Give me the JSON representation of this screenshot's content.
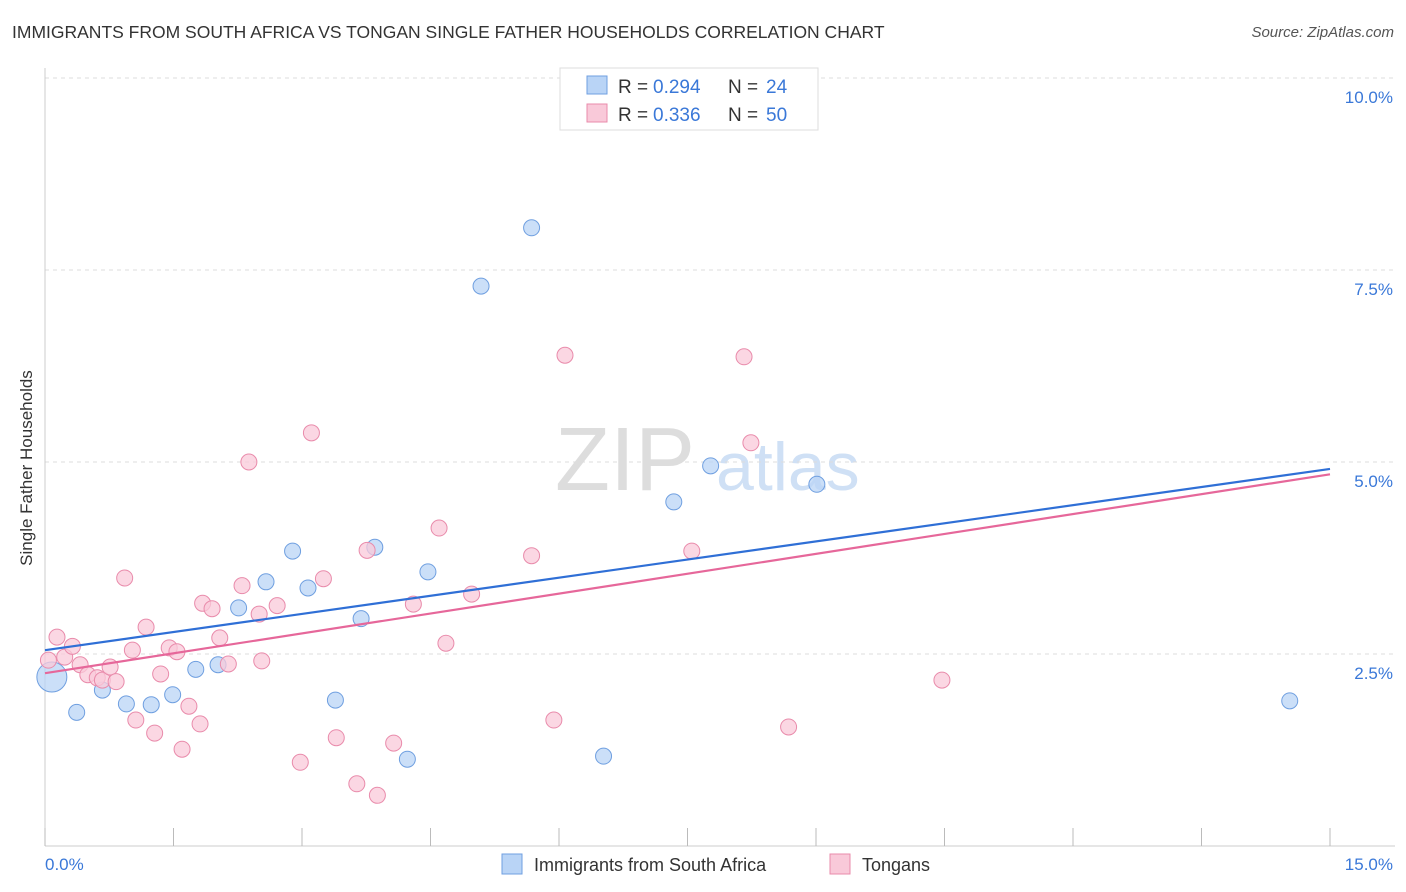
{
  "title": "IMMIGRANTS FROM SOUTH AFRICA VS TONGAN SINGLE FATHER HOUSEHOLDS CORRELATION CHART",
  "source": "Source: ZipAtlas.com",
  "watermark": {
    "zip": "ZIP",
    "atlas": "atlas"
  },
  "chart_data": {
    "type": "scatter",
    "title": "IMMIGRANTS FROM SOUTH AFRICA VS TONGAN SINGLE FATHER HOUSEHOLDS CORRELATION CHART",
    "xlabel": "",
    "ylabel": "Single Father Households",
    "xlim": [
      0,
      15
    ],
    "ylim": [
      0,
      10
    ],
    "x_tick_labels": [
      "0.0%",
      "15.0%"
    ],
    "y_ticks": [
      2.5,
      5.0,
      7.5,
      10.0
    ],
    "y_tick_labels": [
      "2.5%",
      "5.0%",
      "7.5%",
      "10.0%"
    ],
    "legend_placement": "top-center",
    "colors": {
      "blue_fill": "#b9d4f6",
      "blue_stroke": "#6f9fe0",
      "blue_line": "#2f6fd6",
      "pink_fill": "#f9c9d9",
      "pink_stroke": "#e98bab",
      "pink_line": "#e6679a",
      "value_text": "#3a78d8"
    },
    "series": [
      {
        "name": "Immigrants from South Africa",
        "R": "0.294",
        "N": "24",
        "trend": [
          [
            0,
            2.55
          ],
          [
            15,
            4.91
          ]
        ],
        "points": [
          [
            0.08,
            2.2
          ],
          [
            0.37,
            1.74
          ],
          [
            0.67,
            2.03
          ],
          [
            0.95,
            1.85
          ],
          [
            1.24,
            1.84
          ],
          [
            1.49,
            1.97
          ],
          [
            1.76,
            2.3
          ],
          [
            2.02,
            2.36
          ],
          [
            2.26,
            3.1
          ],
          [
            2.58,
            3.44
          ],
          [
            2.89,
            3.84
          ],
          [
            3.07,
            3.36
          ],
          [
            3.39,
            1.9
          ],
          [
            3.69,
            2.96
          ],
          [
            3.85,
            3.89
          ],
          [
            4.23,
            1.13
          ],
          [
            4.47,
            3.57
          ],
          [
            5.09,
            7.29
          ],
          [
            5.68,
            8.05
          ],
          [
            6.52,
            1.17
          ],
          [
            7.34,
            4.48
          ],
          [
            7.77,
            4.95
          ],
          [
            9.01,
            4.71
          ],
          [
            14.53,
            1.89
          ]
        ]
      },
      {
        "name": "Tongans",
        "R": "0.336",
        "N": "50",
        "trend": [
          [
            0,
            2.25
          ],
          [
            15,
            4.84
          ]
        ],
        "points": [
          [
            0.04,
            2.42
          ],
          [
            0.14,
            2.72
          ],
          [
            0.23,
            2.46
          ],
          [
            0.32,
            2.6
          ],
          [
            0.41,
            2.36
          ],
          [
            0.5,
            2.23
          ],
          [
            0.61,
            2.19
          ],
          [
            0.67,
            2.16
          ],
          [
            0.76,
            2.33
          ],
          [
            0.83,
            2.14
          ],
          [
            0.93,
            3.49
          ],
          [
            1.02,
            2.55
          ],
          [
            1.06,
            1.64
          ],
          [
            1.18,
            2.85
          ],
          [
            1.28,
            1.47
          ],
          [
            1.35,
            2.24
          ],
          [
            1.45,
            2.58
          ],
          [
            1.54,
            2.53
          ],
          [
            1.6,
            1.26
          ],
          [
            1.68,
            1.82
          ],
          [
            1.81,
            1.59
          ],
          [
            1.84,
            3.16
          ],
          [
            1.95,
            3.09
          ],
          [
            2.04,
            2.71
          ],
          [
            2.14,
            2.37
          ],
          [
            2.3,
            3.39
          ],
          [
            2.38,
            5.0
          ],
          [
            2.5,
            3.02
          ],
          [
            2.53,
            2.41
          ],
          [
            2.71,
            3.13
          ],
          [
            2.98,
            1.09
          ],
          [
            3.11,
            5.38
          ],
          [
            3.25,
            3.48
          ],
          [
            3.4,
            1.41
          ],
          [
            3.64,
            0.81
          ],
          [
            3.76,
            3.85
          ],
          [
            3.88,
            0.66
          ],
          [
            4.07,
            1.34
          ],
          [
            4.3,
            3.15
          ],
          [
            4.6,
            4.14
          ],
          [
            4.68,
            2.64
          ],
          [
            4.98,
            3.28
          ],
          [
            5.68,
            3.78
          ],
          [
            5.94,
            1.64
          ],
          [
            6.07,
            6.39
          ],
          [
            7.55,
            3.84
          ],
          [
            8.16,
            6.37
          ],
          [
            8.24,
            5.25
          ],
          [
            8.68,
            1.55
          ],
          [
            10.47,
            2.16
          ]
        ]
      }
    ],
    "legend_labels": {
      "r": "R = ",
      "n": "N = "
    }
  }
}
